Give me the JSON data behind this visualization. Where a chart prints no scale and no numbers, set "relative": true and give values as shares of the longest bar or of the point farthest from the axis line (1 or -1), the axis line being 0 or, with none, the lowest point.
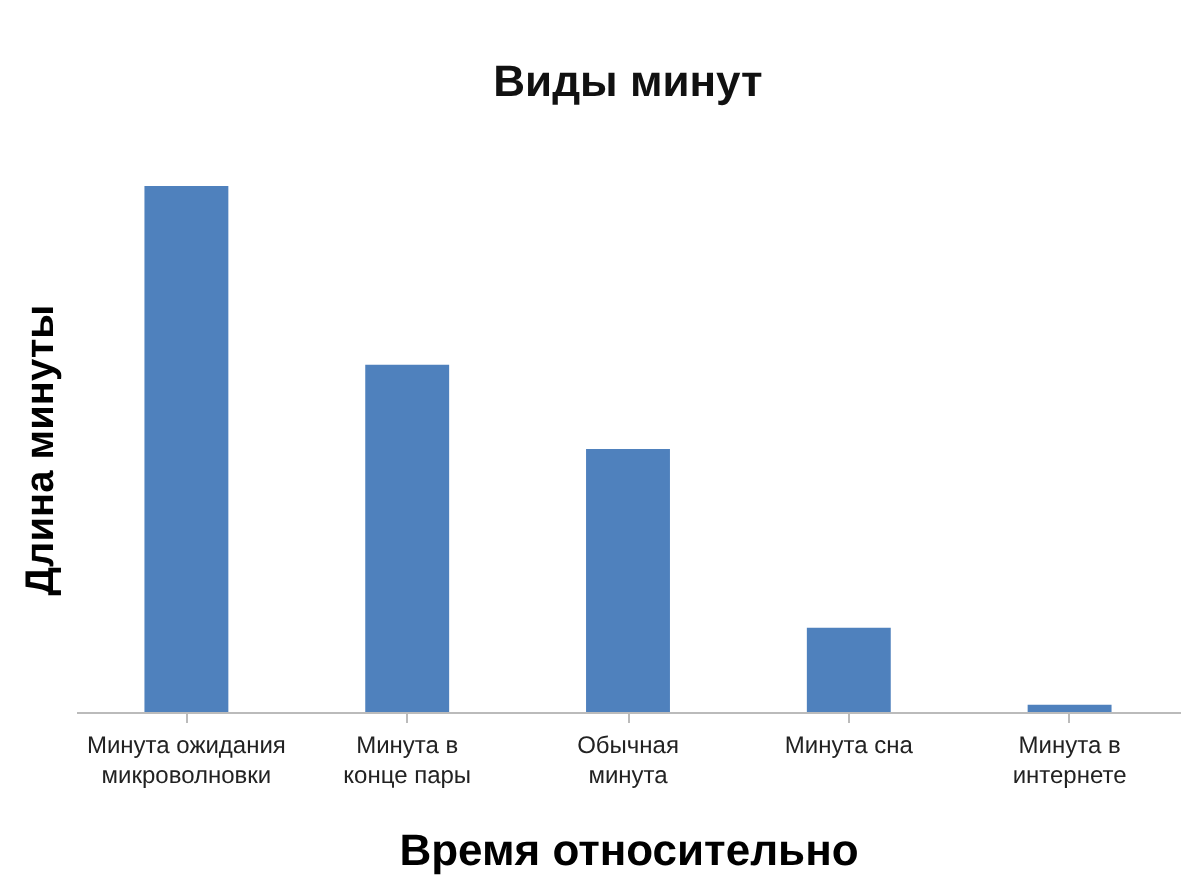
{
  "chart_data": {
    "type": "bar",
    "title": "Виды минут",
    "xlabel": "Время относительно",
    "ylabel": "Длина минуты",
    "categories": [
      "Минута ожидания\nмикроволновки",
      "Минута в\nконце пары",
      "Обычная\nминута",
      "Минута сна",
      "Минута в\nинтернете"
    ],
    "values": [
      1,
      0.66,
      0.5,
      0.16,
      0.014
    ],
    "color": "#4f81bd",
    "relative": true
  }
}
